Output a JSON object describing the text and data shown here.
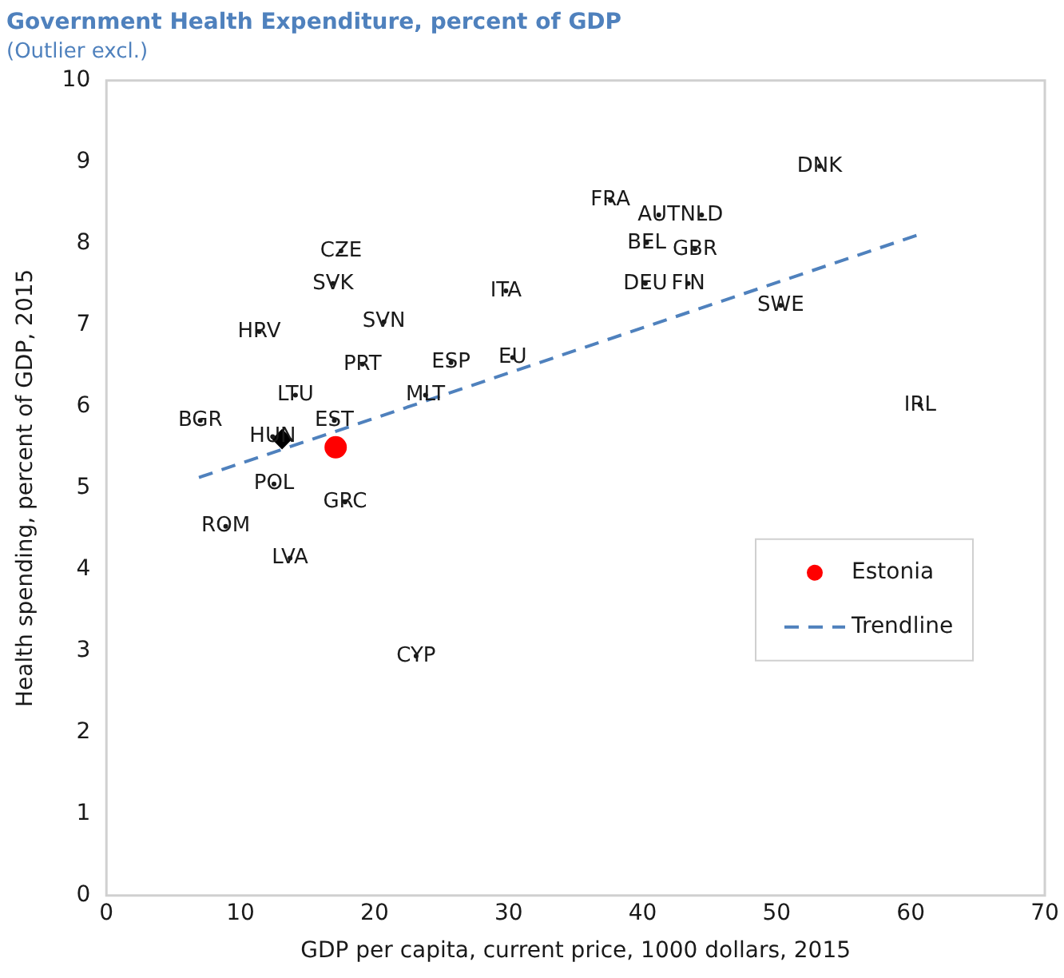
{
  "chart_data": {
    "type": "scatter",
    "title": "Government Health Expenditure, percent of GDP",
    "subtitle": "(Outlier excl.)",
    "xlabel": "GDP per capita, current price, 1000 dollars, 2015",
    "ylabel": "Health spending, percent of GDP, 2015",
    "xlim": [
      0,
      70
    ],
    "xticks": [
      0,
      10,
      20,
      30,
      40,
      50,
      60,
      70
    ],
    "ylim": [
      0,
      10
    ],
    "yticks": [
      0,
      1,
      2,
      3,
      4,
      5,
      6,
      7,
      8,
      9,
      10
    ],
    "grid": false,
    "legend": "bottom right",
    "series": [
      {
        "color": "#1a1a1a",
        "x": [
          53.2,
          37.6,
          41.2,
          44.4,
          40.3,
          43.9,
          40.2,
          43.4,
          50.3,
          60.7,
          29.8,
          30.3,
          17.5,
          16.9,
          11.4,
          20.7,
          19.1,
          25.7,
          23.8,
          14.1,
          7.0,
          17.0,
          12.4,
          12.5,
          17.8,
          8.9,
          13.7,
          23.1
        ],
        "values": [
          8.95,
          8.53,
          8.35,
          8.35,
          8.01,
          7.93,
          7.51,
          7.51,
          7.24,
          6.02,
          7.42,
          6.6,
          7.91,
          7.51,
          6.92,
          7.04,
          6.52,
          6.54,
          6.14,
          6.14,
          5.83,
          5.83,
          5.63,
          5.05,
          4.83,
          4.53,
          4.14,
          2.94
        ],
        "value_labels": [
          "DNK",
          "FRA",
          "AUT",
          "NLD",
          "BEL",
          "GBR",
          "DEU",
          "FIN",
          "SWE",
          "IRL",
          "ITA",
          "EU",
          "CZE",
          "SVK",
          "HRV",
          "SVN",
          "PRT",
          "ESP",
          "MLT",
          "LTU",
          "BGR",
          "EST",
          "HUN",
          "POL",
          "GRC",
          "ROM",
          "LVA",
          "CYP"
        ]
      },
      {
        "name": "Estonia",
        "color": "#ff0000",
        "marker": "circle",
        "x": [
          17.1
        ],
        "values": [
          5.5
        ]
      },
      {
        "color": "#000000",
        "marker": "diamond",
        "x": [
          13.1
        ],
        "values": [
          5.6
        ]
      },
      {
        "name": "Trendline",
        "type": "line",
        "color": "#4f81bd",
        "marker": "none",
        "line_style": "dashed",
        "x": [
          6.9,
          60.8
        ],
        "values": [
          5.13,
          8.12
        ]
      }
    ]
  }
}
